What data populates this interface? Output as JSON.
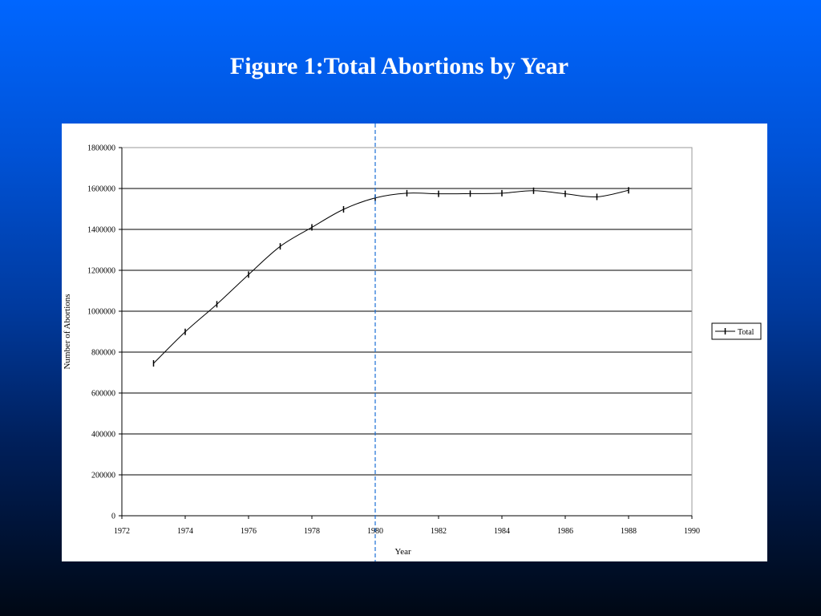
{
  "slide": {
    "title": "Figure 1:Total Abortions by Year"
  },
  "colors": {
    "background_top": "#0066ff",
    "background_bottom": "#000814",
    "panel": "#ffffff",
    "series": "#000000",
    "reference_line": "#1a6fd6"
  },
  "chart_data": {
    "type": "line",
    "title": "",
    "xlabel": "Year",
    "ylabel": "Number of Abortions",
    "xlim": [
      1972,
      1990
    ],
    "ylim": [
      0,
      1800000
    ],
    "x_ticks": [
      "1972",
      "1974",
      "1976",
      "1978",
      "1980",
      "1982",
      "1984",
      "1986",
      "1988",
      "1990"
    ],
    "y_ticks": [
      "0",
      "200000",
      "400000",
      "600000",
      "800000",
      "1000000",
      "1200000",
      "1400000",
      "1600000",
      "1800000"
    ],
    "grid": "horizontal",
    "legend": "right",
    "reference_line_x": 1980,
    "series": [
      {
        "name": "Total",
        "x": [
          1973,
          1974,
          1975,
          1976,
          1977,
          1978,
          1979,
          1980,
          1981,
          1982,
          1983,
          1984,
          1985,
          1986,
          1987,
          1988
        ],
        "values": [
          745000,
          899000,
          1034000,
          1179000,
          1317000,
          1410000,
          1498000,
          1554000,
          1577000,
          1574000,
          1575000,
          1577000,
          1589000,
          1574000,
          1559000,
          1591000
        ]
      }
    ]
  }
}
